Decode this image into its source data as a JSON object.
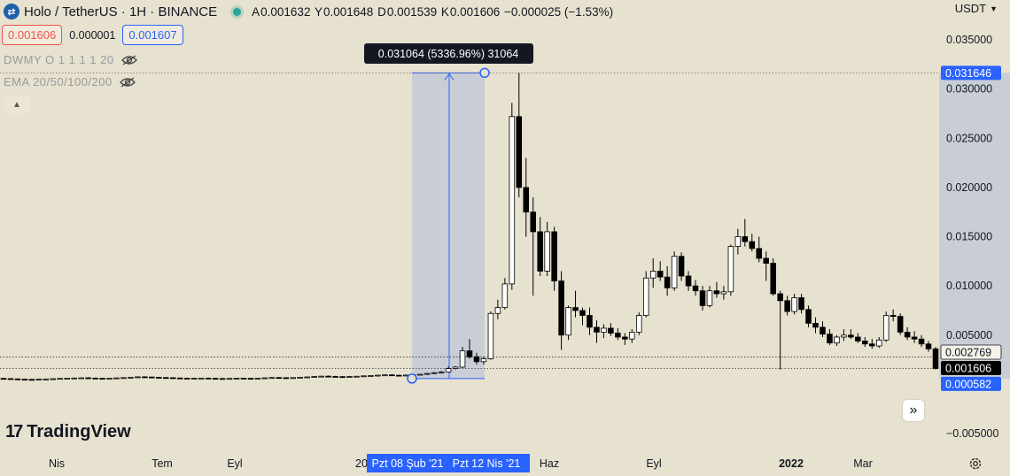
{
  "header": {
    "symbol_icon": "exchange-swap-icon",
    "title": "Holo / TetherUS · 1H · BINANCE",
    "ohlc": {
      "open_label": "A",
      "open": "0.001632",
      "high_label": "Y",
      "high": "0.001648",
      "low_label": "D",
      "low": "0.001539",
      "close_label": "K",
      "close": "0.001606",
      "change": "−0.000025 (−1.53%)"
    }
  },
  "trade": {
    "sell_price": "0.001606",
    "spread": "0.000001",
    "buy_price": "0.001607"
  },
  "indicators": [
    {
      "label": "DWMY O 1 1 1 1 20"
    },
    {
      "label": "EMA 20/50/100/200"
    }
  ],
  "currency": "USDT",
  "logo": {
    "mark": "17",
    "text": "TradingView"
  },
  "colors": {
    "background": "#e7e1cf",
    "bull": "#ffffff",
    "bear": "#000000",
    "measure_fill": "#c3c9d7",
    "measure_line": "#2962ff"
  },
  "chart_data": {
    "type": "candlestick",
    "x_axis_labels": [
      "Nis",
      "Tem",
      "Eyl",
      "20",
      "Haz",
      "Eyl",
      "2022",
      "Mar"
    ],
    "y_axis_ticks": [
      "0.035000",
      "0.030000",
      "0.025000",
      "0.020000",
      "0.015000",
      "0.010000",
      "0.005000",
      "−0.005000"
    ],
    "y_tick_values": [
      0.035,
      0.03,
      0.025,
      0.02,
      0.015,
      0.01,
      0.005,
      -0.005
    ],
    "ylim": [
      -0.0055,
      0.0385
    ],
    "price_badges": {
      "measure_top": "0.031646",
      "prev_level": "0.002769",
      "last_price": "0.001606",
      "measure_bottom": "0.000582"
    },
    "measure_tooltip": "0.031064 (5336.96%) 31064",
    "measure_range": {
      "from_date_label": "Pzt 08 Şub '21",
      "to_date_label": "Pzt 12 Nis '21",
      "from_price": 0.000582,
      "to_price": 0.031646
    },
    "reference_lines": [
      0.002769,
      0.001606
    ],
    "candles": [
      {
        "o": 0.0006,
        "h": 0.00065,
        "l": 0.00055,
        "c": 0.00058
      },
      {
        "o": 0.00058,
        "h": 0.00062,
        "l": 0.00052,
        "c": 0.00055
      },
      {
        "o": 0.00055,
        "h": 0.0006,
        "l": 0.0005,
        "c": 0.00052
      },
      {
        "o": 0.00052,
        "h": 0.00058,
        "l": 0.00048,
        "c": 0.0005
      },
      {
        "o": 0.0005,
        "h": 0.00056,
        "l": 0.00047,
        "c": 0.00049
      },
      {
        "o": 0.00049,
        "h": 0.00055,
        "l": 0.00046,
        "c": 0.00052
      },
      {
        "o": 0.00052,
        "h": 0.00058,
        "l": 0.00049,
        "c": 0.00054
      },
      {
        "o": 0.00054,
        "h": 0.0006,
        "l": 0.00051,
        "c": 0.00057
      },
      {
        "o": 0.00057,
        "h": 0.00063,
        "l": 0.00054,
        "c": 0.0006
      },
      {
        "o": 0.0006,
        "h": 0.00066,
        "l": 0.00056,
        "c": 0.00062
      },
      {
        "o": 0.00062,
        "h": 0.00068,
        "l": 0.00058,
        "c": 0.00064
      },
      {
        "o": 0.00064,
        "h": 0.0007,
        "l": 0.0006,
        "c": 0.00066
      },
      {
        "o": 0.00066,
        "h": 0.00072,
        "l": 0.00062,
        "c": 0.00063
      },
      {
        "o": 0.00063,
        "h": 0.00068,
        "l": 0.00058,
        "c": 0.00061
      },
      {
        "o": 0.00061,
        "h": 0.00066,
        "l": 0.00057,
        "c": 0.0006
      },
      {
        "o": 0.0006,
        "h": 0.00065,
        "l": 0.00056,
        "c": 0.00062
      },
      {
        "o": 0.00062,
        "h": 0.00068,
        "l": 0.00058,
        "c": 0.00065
      },
      {
        "o": 0.00065,
        "h": 0.00071,
        "l": 0.00061,
        "c": 0.00068
      },
      {
        "o": 0.00068,
        "h": 0.00074,
        "l": 0.00064,
        "c": 0.00072
      },
      {
        "o": 0.00072,
        "h": 0.0008,
        "l": 0.00068,
        "c": 0.00076
      },
      {
        "o": 0.00076,
        "h": 0.00082,
        "l": 0.0007,
        "c": 0.00074
      },
      {
        "o": 0.00074,
        "h": 0.00079,
        "l": 0.00068,
        "c": 0.00071
      },
      {
        "o": 0.00071,
        "h": 0.00076,
        "l": 0.00065,
        "c": 0.00069
      },
      {
        "o": 0.00069,
        "h": 0.00074,
        "l": 0.00063,
        "c": 0.00067
      },
      {
        "o": 0.00067,
        "h": 0.00072,
        "l": 0.00061,
        "c": 0.00064
      },
      {
        "o": 0.00064,
        "h": 0.00069,
        "l": 0.00058,
        "c": 0.00062
      },
      {
        "o": 0.00062,
        "h": 0.00067,
        "l": 0.00056,
        "c": 0.0006
      },
      {
        "o": 0.0006,
        "h": 0.00065,
        "l": 0.00055,
        "c": 0.00061
      },
      {
        "o": 0.00061,
        "h": 0.00066,
        "l": 0.00056,
        "c": 0.00063
      },
      {
        "o": 0.00063,
        "h": 0.00068,
        "l": 0.00058,
        "c": 0.00061
      },
      {
        "o": 0.00061,
        "h": 0.00066,
        "l": 0.00056,
        "c": 0.00059
      },
      {
        "o": 0.00059,
        "h": 0.00064,
        "l": 0.00054,
        "c": 0.00058
      },
      {
        "o": 0.00058,
        "h": 0.00063,
        "l": 0.00053,
        "c": 0.0006
      },
      {
        "o": 0.0006,
        "h": 0.00065,
        "l": 0.00055,
        "c": 0.00062
      },
      {
        "o": 0.00062,
        "h": 0.00067,
        "l": 0.00057,
        "c": 0.00061
      },
      {
        "o": 0.00061,
        "h": 0.00066,
        "l": 0.00056,
        "c": 0.00059
      },
      {
        "o": 0.00059,
        "h": 0.00064,
        "l": 0.00054,
        "c": 0.00062
      },
      {
        "o": 0.00062,
        "h": 0.00068,
        "l": 0.00058,
        "c": 0.00066
      },
      {
        "o": 0.00066,
        "h": 0.00072,
        "l": 0.00062,
        "c": 0.00069
      },
      {
        "o": 0.00069,
        "h": 0.00075,
        "l": 0.00064,
        "c": 0.00067
      },
      {
        "o": 0.00067,
        "h": 0.00072,
        "l": 0.00062,
        "c": 0.00065
      },
      {
        "o": 0.00065,
        "h": 0.0007,
        "l": 0.0006,
        "c": 0.00068
      },
      {
        "o": 0.00068,
        "h": 0.00074,
        "l": 0.00063,
        "c": 0.00072
      },
      {
        "o": 0.00072,
        "h": 0.00078,
        "l": 0.00067,
        "c": 0.00075
      },
      {
        "o": 0.00075,
        "h": 0.00081,
        "l": 0.0007,
        "c": 0.00079
      },
      {
        "o": 0.00079,
        "h": 0.00086,
        "l": 0.00074,
        "c": 0.00083
      },
      {
        "o": 0.00083,
        "h": 0.0009,
        "l": 0.00077,
        "c": 0.0008
      },
      {
        "o": 0.0008,
        "h": 0.00086,
        "l": 0.00074,
        "c": 0.00078
      },
      {
        "o": 0.00078,
        "h": 0.00084,
        "l": 0.00072,
        "c": 0.00076
      },
      {
        "o": 0.00076,
        "h": 0.00082,
        "l": 0.0007,
        "c": 0.00079
      },
      {
        "o": 0.00079,
        "h": 0.00085,
        "l": 0.00073,
        "c": 0.00082
      },
      {
        "o": 0.00082,
        "h": 0.00088,
        "l": 0.00076,
        "c": 0.00086
      },
      {
        "o": 0.00086,
        "h": 0.00092,
        "l": 0.0008,
        "c": 0.00089
      },
      {
        "o": 0.00089,
        "h": 0.00095,
        "l": 0.00083,
        "c": 0.00093
      },
      {
        "o": 0.00093,
        "h": 0.001,
        "l": 0.00087,
        "c": 0.00096
      },
      {
        "o": 0.00096,
        "h": 0.00104,
        "l": 0.0009,
        "c": 0.00092
      },
      {
        "o": 0.00092,
        "h": 0.00098,
        "l": 0.00086,
        "c": 0.0009
      },
      {
        "o": 0.0009,
        "h": 0.00096,
        "l": 0.00084,
        "c": 0.00094
      },
      {
        "o": 0.00094,
        "h": 0.00101,
        "l": 0.00088,
        "c": 0.00098
      },
      {
        "o": 0.00098,
        "h": 0.00105,
        "l": 0.00092,
        "c": 0.00102
      },
      {
        "o": 0.00102,
        "h": 0.00115,
        "l": 0.00096,
        "c": 0.0011
      },
      {
        "o": 0.0011,
        "h": 0.00125,
        "l": 0.00104,
        "c": 0.00118
      },
      {
        "o": 0.00118,
        "h": 0.00135,
        "l": 0.0011,
        "c": 0.00125
      },
      {
        "o": 0.00125,
        "h": 0.0018,
        "l": 0.0012,
        "c": 0.0016
      },
      {
        "o": 0.0016,
        "h": 0.00185,
        "l": 0.0015,
        "c": 0.00175
      },
      {
        "o": 0.00175,
        "h": 0.0038,
        "l": 0.00165,
        "c": 0.0034
      },
      {
        "o": 0.0034,
        "h": 0.0046,
        "l": 0.0026,
        "c": 0.0028
      },
      {
        "o": 0.0028,
        "h": 0.0032,
        "l": 0.002,
        "c": 0.0023
      },
      {
        "o": 0.0023,
        "h": 0.0028,
        "l": 0.002,
        "c": 0.0026
      },
      {
        "o": 0.0026,
        "h": 0.0074,
        "l": 0.0025,
        "c": 0.0072
      },
      {
        "o": 0.0072,
        "h": 0.0086,
        "l": 0.0066,
        "c": 0.0078
      },
      {
        "o": 0.0078,
        "h": 0.0108,
        "l": 0.0076,
        "c": 0.0102
      },
      {
        "o": 0.0102,
        "h": 0.0286,
        "l": 0.0096,
        "c": 0.0272
      },
      {
        "o": 0.0272,
        "h": 0.03164,
        "l": 0.019,
        "c": 0.02
      },
      {
        "o": 0.02,
        "h": 0.023,
        "l": 0.015,
        "c": 0.0175
      },
      {
        "o": 0.0175,
        "h": 0.019,
        "l": 0.009,
        "c": 0.0155
      },
      {
        "o": 0.0155,
        "h": 0.017,
        "l": 0.011,
        "c": 0.0115
      },
      {
        "o": 0.0115,
        "h": 0.0165,
        "l": 0.011,
        "c": 0.0155
      },
      {
        "o": 0.0155,
        "h": 0.016,
        "l": 0.0095,
        "c": 0.0105
      },
      {
        "o": 0.0105,
        "h": 0.0115,
        "l": 0.0035,
        "c": 0.005
      },
      {
        "o": 0.005,
        "h": 0.008,
        "l": 0.0045,
        "c": 0.0078
      },
      {
        "o": 0.0078,
        "h": 0.0095,
        "l": 0.0068,
        "c": 0.0075
      },
      {
        "o": 0.0075,
        "h": 0.0078,
        "l": 0.006,
        "c": 0.007
      },
      {
        "o": 0.007,
        "h": 0.0078,
        "l": 0.005,
        "c": 0.0058
      },
      {
        "o": 0.0058,
        "h": 0.0065,
        "l": 0.0042,
        "c": 0.0053
      },
      {
        "o": 0.0053,
        "h": 0.0061,
        "l": 0.0047,
        "c": 0.0057
      },
      {
        "o": 0.0057,
        "h": 0.0062,
        "l": 0.0049,
        "c": 0.0052
      },
      {
        "o": 0.0052,
        "h": 0.0057,
        "l": 0.0045,
        "c": 0.0048
      },
      {
        "o": 0.0048,
        "h": 0.0052,
        "l": 0.004,
        "c": 0.0046
      },
      {
        "o": 0.0046,
        "h": 0.0056,
        "l": 0.0042,
        "c": 0.0053
      },
      {
        "o": 0.0053,
        "h": 0.0073,
        "l": 0.005,
        "c": 0.007
      },
      {
        "o": 0.007,
        "h": 0.0115,
        "l": 0.0068,
        "c": 0.0108
      },
      {
        "o": 0.0108,
        "h": 0.0128,
        "l": 0.0098,
        "c": 0.0115
      },
      {
        "o": 0.0115,
        "h": 0.0125,
        "l": 0.0105,
        "c": 0.0109
      },
      {
        "o": 0.0109,
        "h": 0.012,
        "l": 0.009,
        "c": 0.0098
      },
      {
        "o": 0.0098,
        "h": 0.0135,
        "l": 0.0095,
        "c": 0.013
      },
      {
        "o": 0.013,
        "h": 0.0134,
        "l": 0.0105,
        "c": 0.011
      },
      {
        "o": 0.011,
        "h": 0.0115,
        "l": 0.0095,
        "c": 0.01
      },
      {
        "o": 0.01,
        "h": 0.0106,
        "l": 0.009,
        "c": 0.0095
      },
      {
        "o": 0.0095,
        "h": 0.01,
        "l": 0.0075,
        "c": 0.008
      },
      {
        "o": 0.008,
        "h": 0.01,
        "l": 0.0078,
        "c": 0.0095
      },
      {
        "o": 0.0095,
        "h": 0.0104,
        "l": 0.0088,
        "c": 0.0092
      },
      {
        "o": 0.0092,
        "h": 0.01,
        "l": 0.0086,
        "c": 0.0094
      },
      {
        "o": 0.0094,
        "h": 0.0142,
        "l": 0.009,
        "c": 0.014
      },
      {
        "o": 0.014,
        "h": 0.0158,
        "l": 0.0132,
        "c": 0.015
      },
      {
        "o": 0.015,
        "h": 0.0168,
        "l": 0.014,
        "c": 0.0145
      },
      {
        "o": 0.0145,
        "h": 0.0153,
        "l": 0.0135,
        "c": 0.0138
      },
      {
        "o": 0.0138,
        "h": 0.015,
        "l": 0.0124,
        "c": 0.0128
      },
      {
        "o": 0.0128,
        "h": 0.0135,
        "l": 0.0105,
        "c": 0.0123
      },
      {
        "o": 0.0123,
        "h": 0.0128,
        "l": 0.009,
        "c": 0.0092
      },
      {
        "o": 0.0092,
        "h": 0.0095,
        "l": 0.0015,
        "c": 0.0085
      },
      {
        "o": 0.0085,
        "h": 0.009,
        "l": 0.007,
        "c": 0.0074
      },
      {
        "o": 0.0074,
        "h": 0.0092,
        "l": 0.0071,
        "c": 0.0088
      },
      {
        "o": 0.0088,
        "h": 0.0092,
        "l": 0.0072,
        "c": 0.0076
      },
      {
        "o": 0.0076,
        "h": 0.008,
        "l": 0.0058,
        "c": 0.0062
      },
      {
        "o": 0.0062,
        "h": 0.0068,
        "l": 0.0052,
        "c": 0.0058
      },
      {
        "o": 0.0058,
        "h": 0.0064,
        "l": 0.0048,
        "c": 0.0051
      },
      {
        "o": 0.0051,
        "h": 0.0056,
        "l": 0.004,
        "c": 0.0042
      },
      {
        "o": 0.0042,
        "h": 0.005,
        "l": 0.0039,
        "c": 0.0048
      },
      {
        "o": 0.0048,
        "h": 0.0056,
        "l": 0.0044,
        "c": 0.005
      },
      {
        "o": 0.005,
        "h": 0.0056,
        "l": 0.0046,
        "c": 0.0048
      },
      {
        "o": 0.0048,
        "h": 0.0052,
        "l": 0.0042,
        "c": 0.0044
      },
      {
        "o": 0.0044,
        "h": 0.0048,
        "l": 0.0038,
        "c": 0.0041
      },
      {
        "o": 0.0041,
        "h": 0.0046,
        "l": 0.0036,
        "c": 0.0039
      },
      {
        "o": 0.0039,
        "h": 0.0048,
        "l": 0.0037,
        "c": 0.0045
      },
      {
        "o": 0.0045,
        "h": 0.0074,
        "l": 0.0043,
        "c": 0.007
      },
      {
        "o": 0.007,
        "h": 0.0076,
        "l": 0.0064,
        "c": 0.0069
      },
      {
        "o": 0.0069,
        "h": 0.0072,
        "l": 0.005,
        "c": 0.0053
      },
      {
        "o": 0.0053,
        "h": 0.0058,
        "l": 0.0045,
        "c": 0.0048
      },
      {
        "o": 0.0048,
        "h": 0.0054,
        "l": 0.0042,
        "c": 0.0046
      },
      {
        "o": 0.0046,
        "h": 0.005,
        "l": 0.0038,
        "c": 0.0041
      },
      {
        "o": 0.0041,
        "h": 0.0044,
        "l": 0.0033,
        "c": 0.0036
      },
      {
        "o": 0.0036,
        "h": 0.0038,
        "l": 0.0015,
        "c": 0.0016
      }
    ]
  }
}
